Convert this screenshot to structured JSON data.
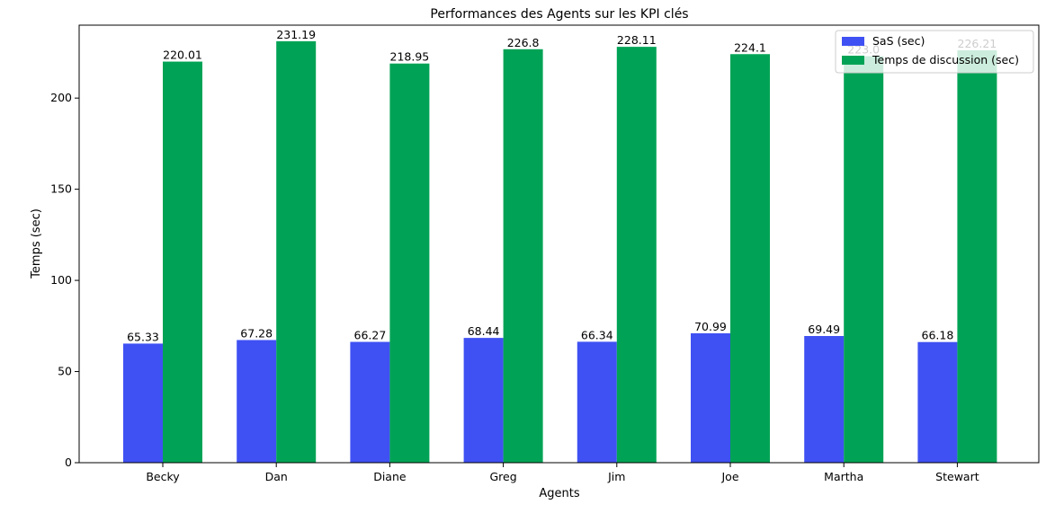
{
  "chart_data": {
    "type": "bar",
    "title": "Performances des Agents sur les KPI clés",
    "xlabel": "Agents",
    "ylabel": "Temps (sec)",
    "categories": [
      "Becky",
      "Dan",
      "Diane",
      "Greg",
      "Jim",
      "Joe",
      "Martha",
      "Stewart"
    ],
    "series": [
      {
        "name": "SaS (sec)",
        "color": "#3f51f3",
        "values": [
          65.33,
          67.28,
          66.27,
          68.44,
          66.34,
          70.99,
          69.49,
          66.18
        ],
        "labels": [
          "65.33",
          "67.28",
          "66.27",
          "68.44",
          "66.34",
          "70.99",
          "69.49",
          "66.18"
        ]
      },
      {
        "name": "Temps de discussion (sec)",
        "color": "#00a355",
        "values": [
          220.01,
          231.19,
          218.95,
          226.8,
          228.11,
          224.1,
          223.0,
          226.21
        ],
        "labels": [
          "220.01",
          "231.19",
          "218.95",
          "226.8",
          "228.11",
          "224.1",
          "223.0",
          "226.21"
        ]
      }
    ],
    "ylim": [
      0,
      240
    ],
    "yticks": [
      0,
      50,
      100,
      150,
      200
    ],
    "grid": false,
    "legend_position": "top-right"
  }
}
